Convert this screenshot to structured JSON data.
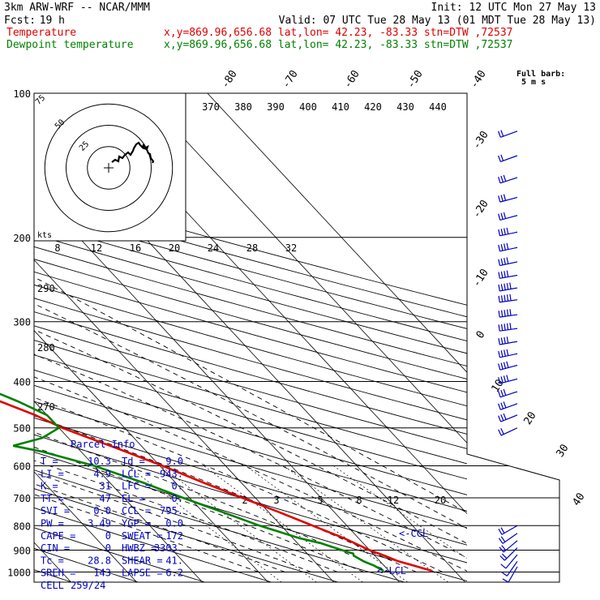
{
  "header": {
    "model": "3km ARW-WRF -- NCAR/MMM",
    "init": "Init: 12 UTC Mon 27 May 13",
    "fcst_label": "Fcst:",
    "fcst_value": "19 h",
    "valid": "Valid: 07 UTC Tue 28 May 13 (01 MDT Tue 28 May 13)"
  },
  "legend": [
    {
      "name": "Temperature",
      "color": "#e00000",
      "info": "x,y=869.96,656.68   lat,lon= 42.23, -83.33   stn=DTW ,72537"
    },
    {
      "name": "Dewpoint temperature",
      "color": "#008000",
      "info": "x,y=869.96,656.68   lat,lon= 42.23, -83.33   stn=DTW ,72537"
    }
  ],
  "chart_data": {
    "type": "line",
    "title": "Skew-T log-P sounding",
    "y_axis": {
      "label": "Pressure (hPa)",
      "ticks": [
        100,
        200,
        300,
        400,
        500,
        600,
        700,
        800,
        900,
        1000
      ]
    },
    "isotherm_labels": [
      "-80",
      "-70",
      "-60",
      "-50",
      "-40",
      "-30",
      "-20",
      "-10",
      "0",
      "10",
      "20",
      "30",
      "40"
    ],
    "theta_e_labels": [
      "370",
      "380",
      "390",
      "400",
      "410",
      "420",
      "430",
      "440"
    ],
    "theta_labels": [
      "290",
      "280",
      "270"
    ],
    "mixing_ratio_labels_upper": [
      "8",
      "12",
      "16",
      "20",
      "24",
      "28",
      "32"
    ],
    "mixing_ratio_labels_lower": [
      "2",
      "3",
      "5",
      "8",
      "12",
      "20"
    ],
    "series": [
      {
        "name": "Temperature",
        "color": "#e00000",
        "points": [
          [
            995,
            16.6
          ],
          [
            970,
            14.6
          ],
          [
            950,
            12.8
          ],
          [
            925,
            11.5
          ],
          [
            900,
            10.0
          ],
          [
            850,
            7.8
          ],
          [
            800,
            4.8
          ],
          [
            750,
            1.6
          ],
          [
            700,
            -2.0
          ],
          [
            650,
            -5.8
          ],
          [
            600,
            -9.6
          ],
          [
            550,
            -14.2
          ],
          [
            500,
            -19.5
          ],
          [
            470,
            -21.8
          ],
          [
            440,
            -25.2
          ],
          [
            410,
            -29.0
          ],
          [
            385,
            -32.5
          ],
          [
            360,
            -36.8
          ],
          [
            340,
            -40.0
          ],
          [
            310,
            -45.0
          ],
          [
            290,
            -49.0
          ],
          [
            260,
            -54.0
          ],
          [
            240,
            -57.5
          ],
          [
            220,
            -61.0
          ],
          [
            200,
            -64.0
          ],
          [
            180,
            -67.0
          ],
          [
            160,
            -69.5
          ],
          [
            145,
            -70.0
          ],
          [
            130,
            -69.0
          ],
          [
            120,
            -67.5
          ],
          [
            110,
            -66.0
          ],
          [
            100,
            -65.5
          ]
        ]
      },
      {
        "name": "Dewpoint temperature",
        "color": "#008000",
        "points": [
          [
            995,
            9.2
          ],
          [
            970,
            8.5
          ],
          [
            950,
            7.5
          ],
          [
            925,
            6.8
          ],
          [
            915,
            7.0
          ],
          [
            900,
            5.8
          ],
          [
            870,
            3.5
          ],
          [
            850,
            1.0
          ],
          [
            800,
            -3.3
          ],
          [
            750,
            -7.0
          ],
          [
            700,
            -11.0
          ],
          [
            650,
            -15.0
          ],
          [
            600,
            -20.0
          ],
          [
            560,
            -26.0
          ],
          [
            545,
            -29.5
          ],
          [
            525,
            -24.0
          ],
          [
            500,
            -20.0
          ],
          [
            470,
            -20.0
          ],
          [
            440,
            -22.5
          ],
          [
            400,
            -27.0
          ],
          [
            380,
            -31.0
          ],
          [
            360,
            -35.0
          ],
          [
            340,
            -42.0
          ],
          [
            320,
            -48.0
          ],
          [
            300,
            -54.0
          ],
          [
            280,
            -60.0
          ],
          [
            260,
            -65.5
          ],
          [
            245,
            -70.0
          ],
          [
            230,
            -74.0
          ],
          [
            210,
            -75.5
          ],
          [
            180,
            -77.0
          ],
          [
            160,
            -79.0
          ],
          [
            140,
            -80.5
          ],
          [
            125,
            -80.0
          ],
          [
            110,
            -79.0
          ],
          [
            100,
            -78.0
          ]
        ]
      }
    ],
    "annotations": [
      "<-CCL",
      "<-LCL"
    ],
    "hodograph": {
      "rings": [
        "75",
        "50",
        "25"
      ],
      "units": "kts",
      "points": [
        [
          4,
          7
        ],
        [
          8,
          10
        ],
        [
          12,
          8
        ],
        [
          13,
          14
        ],
        [
          17,
          12
        ],
        [
          20,
          16
        ],
        [
          24,
          19
        ],
        [
          27,
          16
        ],
        [
          30,
          21
        ],
        [
          31,
          24
        ],
        [
          34,
          29
        ],
        [
          37,
          31
        ],
        [
          39,
          28
        ],
        [
          42,
          25
        ],
        [
          43,
          29
        ],
        [
          44,
          24
        ],
        [
          47,
          23
        ],
        [
          48,
          26
        ],
        [
          46,
          25
        ],
        [
          49,
          18
        ],
        [
          51,
          17
        ],
        [
          52,
          12
        ],
        [
          55,
          8
        ],
        [
          54,
          6
        ]
      ]
    },
    "winds": {
      "title": "Full barb:",
      "subtitle": "5 m s",
      "levels": [
        {
          "p": 120,
          "dir": 250,
          "spd": 10
        },
        {
          "p": 135,
          "dir": 250,
          "spd": 12
        },
        {
          "p": 150,
          "dir": 252,
          "spd": 15
        },
        {
          "p": 165,
          "dir": 255,
          "spd": 17
        },
        {
          "p": 180,
          "dir": 255,
          "spd": 17
        },
        {
          "p": 195,
          "dir": 258,
          "spd": 20
        },
        {
          "p": 210,
          "dir": 258,
          "spd": 22
        },
        {
          "p": 225,
          "dir": 258,
          "spd": 22
        },
        {
          "p": 240,
          "dir": 260,
          "spd": 22
        },
        {
          "p": 255,
          "dir": 260,
          "spd": 25
        },
        {
          "p": 270,
          "dir": 262,
          "spd": 25
        },
        {
          "p": 290,
          "dir": 262,
          "spd": 25
        },
        {
          "p": 310,
          "dir": 262,
          "spd": 25
        },
        {
          "p": 330,
          "dir": 260,
          "spd": 22
        },
        {
          "p": 350,
          "dir": 258,
          "spd": 22
        },
        {
          "p": 370,
          "dir": 255,
          "spd": 20
        },
        {
          "p": 395,
          "dir": 255,
          "spd": 20
        },
        {
          "p": 420,
          "dir": 252,
          "spd": 17
        },
        {
          "p": 445,
          "dir": 250,
          "spd": 15
        },
        {
          "p": 470,
          "dir": 248,
          "spd": 15
        },
        {
          "p": 500,
          "dir": 245,
          "spd": 12
        },
        {
          "p": 800,
          "dir": 240,
          "spd": 12
        },
        {
          "p": 830,
          "dir": 235,
          "spd": 10
        },
        {
          "p": 860,
          "dir": 230,
          "spd": 10
        },
        {
          "p": 890,
          "dir": 225,
          "spd": 10
        },
        {
          "p": 920,
          "dir": 220,
          "spd": 7
        },
        {
          "p": 950,
          "dir": 215,
          "spd": 5
        },
        {
          "p": 975,
          "dir": 210,
          "spd": 5
        }
      ]
    }
  },
  "parcel": {
    "title": "Parcel Info",
    "rows": [
      {
        "k1": "T",
        "v1": "10.3",
        "k2": "Td",
        "v2": "9.0"
      },
      {
        "k1": "LI",
        "v1": "4.9",
        "k2": "LCL",
        "v2": "943."
      },
      {
        "k1": "K",
        "v1": "31",
        "k2": "LFC",
        "v2": "0."
      },
      {
        "k1": "TT",
        "v1": "47",
        "k2": "EL",
        "v2": "0."
      },
      {
        "k1": "SVI",
        "v1": "0.0",
        "k2": "CCL",
        "v2": "795."
      },
      {
        "k1": "PW",
        "v1": "3.49",
        "k2": "YGP",
        "v2": "0.0"
      },
      {
        "k1": "CAPE",
        "v1": "0",
        "k2": "SWEAT",
        "v2": "172"
      },
      {
        "k1": "CIN",
        "v1": "0",
        "k2": "HWBZ",
        "v2": "3303."
      },
      {
        "k1": "Tc",
        "v1": "28.8",
        "k2": "SHEAR",
        "v2": "41."
      },
      {
        "k1": "SREH",
        "v1": "143",
        "k2": "LAPSE",
        "v2": "6.2"
      }
    ],
    "cell_label": "CELL",
    "cell_value": "259/24"
  }
}
